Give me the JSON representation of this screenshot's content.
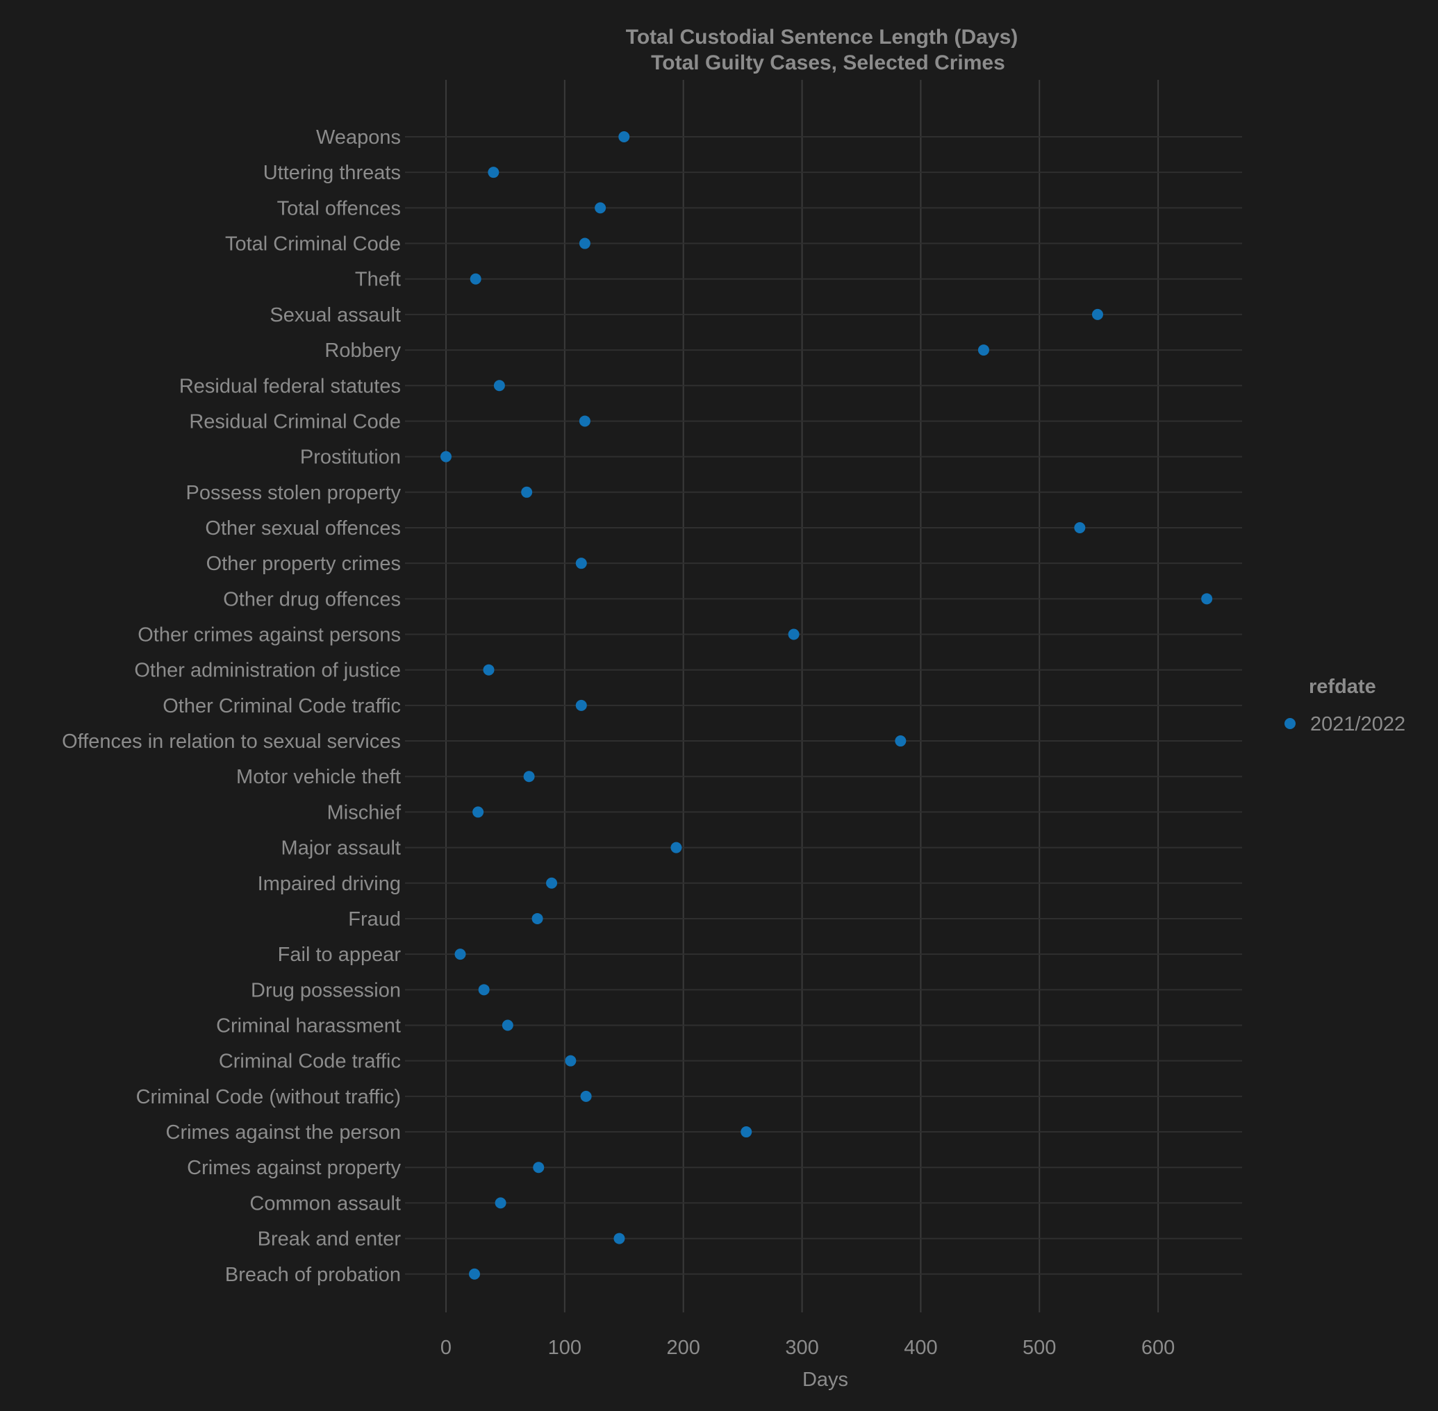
{
  "chart_data": {
    "type": "scatter",
    "title": "Total Custodial Sentence Length (Days)",
    "subtitle": "Total Guilty Cases, Selected Crimes",
    "xlabel": "Days",
    "ylabel": "",
    "xlim": [
      -30,
      670
    ],
    "xticks": [
      0,
      100,
      200,
      300,
      400,
      500,
      600
    ],
    "xtick_labels": [
      "0",
      "100",
      "200",
      "300",
      "400",
      "500",
      "600"
    ],
    "grid": true,
    "legend": {
      "title": "refdate",
      "placement": "right",
      "entries": [
        "2021/2022"
      ]
    },
    "categories": [
      "Weapons",
      "Uttering threats",
      "Total offences",
      "Total Criminal Code",
      "Theft",
      "Sexual assault",
      "Robbery",
      "Residual federal statutes",
      "Residual Criminal Code",
      "Prostitution",
      "Possess stolen property",
      "Other sexual offences",
      "Other property crimes",
      "Other drug offences",
      "Other crimes against persons",
      "Other administration of justice",
      "Other Criminal Code traffic",
      "Offences in relation to sexual services ",
      "Motor vehicle theft ",
      "Mischief",
      "Major assault",
      "Impaired driving",
      "Fraud",
      "Fail to appear",
      "Drug possession",
      "Criminal harassment",
      "Criminal Code traffic",
      "Criminal Code (without traffic)",
      "Crimes against the person",
      "Crimes against property",
      "Common assault",
      "Break and enter",
      "Breach of probation"
    ],
    "series": [
      {
        "name": "2021/2022",
        "color": "#1172b6",
        "values": [
          150,
          40,
          130,
          117,
          25,
          549,
          453,
          45,
          117,
          0,
          68,
          534,
          114,
          641,
          293,
          36,
          114,
          383,
          70,
          27,
          194,
          89,
          77,
          12,
          32,
          52,
          105,
          118,
          253,
          78,
          46,
          146,
          24
        ]
      }
    ]
  },
  "colors": {
    "background": "#1b1b1b",
    "text": "#8c8c8c",
    "grid_major": "#3a3a3a",
    "grid_minor": "#2f2f2f",
    "point": "#1172b6"
  }
}
